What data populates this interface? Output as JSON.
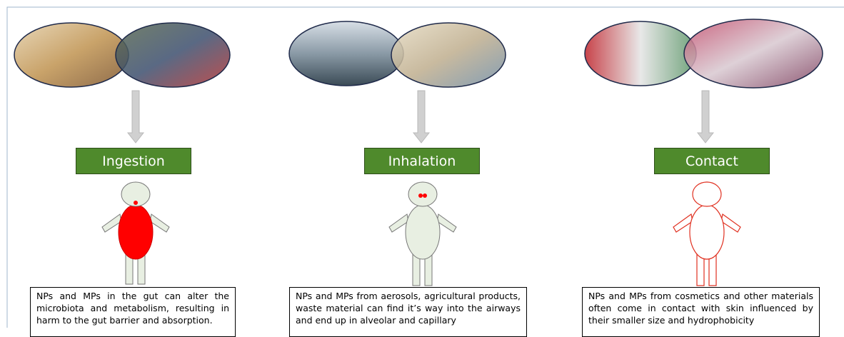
{
  "columns": [
    {
      "label": "Ingestion",
      "description": "NPs and MPs in the gut can alter the microbiota and metabolism, resulting in harm to the gut barrier and absorption."
    },
    {
      "label": "Inhalation",
      "description": "NPs and MPs from aerosols, agricultural products, waste material can find it’s way into the airways and end up in alveolar and capillary"
    },
    {
      "label": "Contact",
      "description": "NPs and MPs from cosmetics and other materials often come in contact with skin influenced by their smaller size and  hydrophobicity"
    }
  ]
}
